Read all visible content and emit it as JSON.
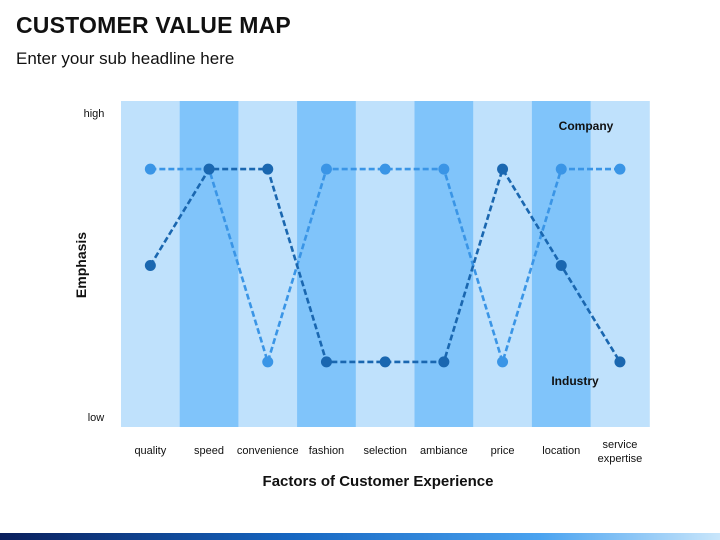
{
  "page": {
    "title": "CUSTOMER VALUE MAP",
    "subtitle": "Enter your sub headline here"
  },
  "colors": {
    "band_light": "#bfe1fc",
    "band_dark": "#80c4fa",
    "company": "#3a95e6",
    "industry": "#1a67b0",
    "text": "#111111"
  },
  "chart_data": {
    "type": "line",
    "xlabel": "Factors of Customer Experience",
    "ylabel": "Emphasis",
    "y_tick_labels": {
      "high": "high",
      "low": "low"
    },
    "ylim": [
      0,
      10
    ],
    "categories": [
      "quality",
      "speed",
      "convenience",
      "fashion",
      "selection",
      "ambiance",
      "price",
      "location",
      "service expertise"
    ],
    "category_labels": [
      [
        "quality"
      ],
      [
        "speed"
      ],
      [
        "convenience"
      ],
      [
        "fashion"
      ],
      [
        "selection"
      ],
      [
        "ambiance"
      ],
      [
        "price"
      ],
      [
        "location"
      ],
      [
        "service",
        "expertise"
      ]
    ],
    "band_pattern": [
      "light",
      "dark",
      "light",
      "dark",
      "light",
      "dark",
      "light",
      "dark",
      "light"
    ],
    "legend_style": "inline labels",
    "grid": false,
    "series": [
      {
        "name": "Company",
        "values": [
          9,
          9,
          1,
          9,
          9,
          9,
          1,
          9,
          9
        ],
        "style": "dashed"
      },
      {
        "name": "Industry",
        "values": [
          5,
          9,
          9,
          1,
          1,
          1,
          9,
          5,
          1
        ],
        "style": "dashed"
      }
    ]
  }
}
